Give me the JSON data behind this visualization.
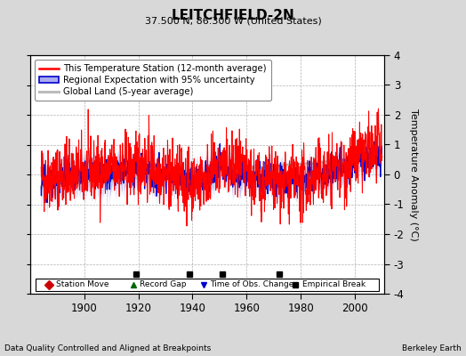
{
  "title": "LEITCHFIELD-2N",
  "subtitle": "37.500 N, 86.300 W (United States)",
  "ylabel": "Temperature Anomaly (°C)",
  "xlabel_bottom_left": "Data Quality Controlled and Aligned at Breakpoints",
  "xlabel_bottom_right": "Berkeley Earth",
  "ylim": [
    -4,
    4
  ],
  "xlim": [
    1880,
    2011
  ],
  "yticks": [
    -4,
    -3,
    -2,
    -1,
    0,
    1,
    2,
    3,
    4
  ],
  "xticks": [
    1900,
    1920,
    1940,
    1960,
    1980,
    2000
  ],
  "background_color": "#d8d8d8",
  "plot_bg_color": "#ffffff",
  "grid_color": "#b0b0b0",
  "empirical_breaks": [
    1919,
    1939,
    1951,
    1972
  ],
  "station_color": "#ff0000",
  "regional_color": "#0000cc",
  "regional_fill_color": "#aaaaee",
  "global_color": "#bbbbbb",
  "seed": 42
}
